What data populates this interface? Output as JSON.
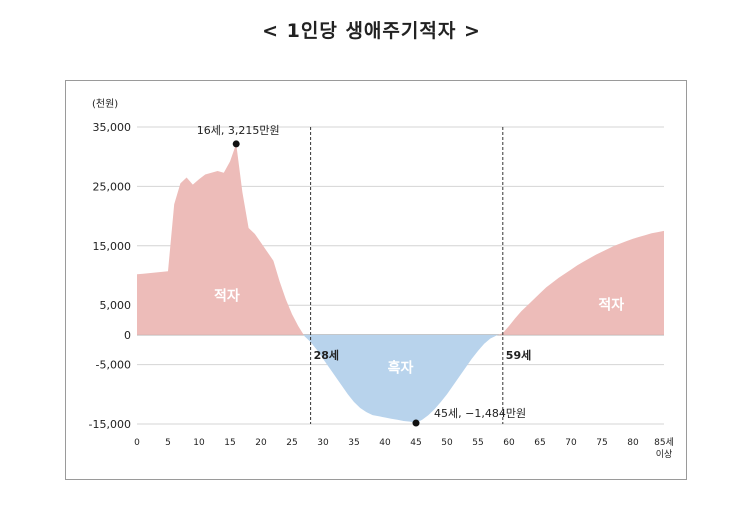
{
  "page_title": "< 1인당 생애주기적자 >",
  "colors": {
    "deficit_fill": "#edbcb9",
    "surplus_fill": "#b8d3ec",
    "gridline": "#d4d4d4",
    "divider": "#333333",
    "point": "#111111"
  },
  "chart_data": {
    "type": "area",
    "title": "< 1인당 생애주기적자 >",
    "ylabel": "(천원)",
    "xlabel": "",
    "ylim": [
      -15000,
      35000
    ],
    "xlim": [
      0,
      85
    ],
    "grid": true,
    "y_ticks": [
      35000,
      25000,
      15000,
      5000,
      0,
      -5000,
      -15000
    ],
    "y_tick_labels": [
      "35,000",
      "25,000",
      "15,000",
      "5,000",
      "0",
      "-5,000",
      "-15,000"
    ],
    "x_ticks": [
      0,
      5,
      10,
      15,
      20,
      25,
      30,
      35,
      40,
      45,
      50,
      55,
      60,
      65,
      70,
      75,
      80,
      85
    ],
    "x_tick_labels": [
      "0",
      "5",
      "10",
      "15",
      "20",
      "25",
      "30",
      "35",
      "40",
      "45",
      "50",
      "55",
      "60",
      "65",
      "70",
      "75",
      "80",
      "85세"
    ],
    "x_tick_sublabel": "이상",
    "x": [
      0,
      1,
      2,
      3,
      4,
      5,
      6,
      7,
      8,
      9,
      10,
      11,
      12,
      13,
      14,
      15,
      16,
      17,
      18,
      19,
      20,
      21,
      22,
      23,
      24,
      25,
      26,
      27,
      28,
      29,
      30,
      31,
      32,
      33,
      34,
      35,
      36,
      37,
      38,
      39,
      40,
      41,
      42,
      43,
      44,
      45,
      46,
      47,
      48,
      49,
      50,
      51,
      52,
      53,
      54,
      55,
      56,
      57,
      58,
      59,
      60,
      61,
      62,
      63,
      64,
      65,
      66,
      67,
      68,
      69,
      70,
      71,
      72,
      73,
      74,
      75,
      76,
      77,
      78,
      79,
      80,
      81,
      82,
      83,
      84,
      85
    ],
    "y": [
      10200,
      10300,
      10400,
      10500,
      10600,
      10700,
      22000,
      25500,
      26500,
      25300,
      26200,
      27000,
      27300,
      27600,
      27300,
      29200,
      32150,
      24000,
      18000,
      17000,
      15500,
      14000,
      12500,
      9000,
      6000,
      3500,
      1500,
      -200,
      -1200,
      -2500,
      -4000,
      -5500,
      -7000,
      -8500,
      -10000,
      -11300,
      -12300,
      -13000,
      -13500,
      -13700,
      -13900,
      -14100,
      -14300,
      -14500,
      -14600,
      -14840,
      -14300,
      -13500,
      -12500,
      -11300,
      -10000,
      -8500,
      -7000,
      -5500,
      -4000,
      -2700,
      -1500,
      -600,
      -100,
      300,
      1500,
      2800,
      4000,
      5000,
      6000,
      7000,
      8000,
      8800,
      9600,
      10300,
      11000,
      11700,
      12300,
      12900,
      13500,
      14000,
      14500,
      15000,
      15400,
      15800,
      16200,
      16500,
      16800,
      17100,
      17300,
      17500
    ],
    "area_labels": {
      "deficit_left": "적자",
      "deficit_right": "적자",
      "surplus": "흑자"
    },
    "markers": [
      {
        "x": 28,
        "label": "28세"
      },
      {
        "x": 59,
        "label": "59세"
      }
    ],
    "annotations": [
      {
        "x": 16,
        "y": 32150,
        "label": "16세, 3,215만원"
      },
      {
        "x": 45,
        "y": -14840,
        "label": "45세, −1,484만원"
      }
    ]
  }
}
